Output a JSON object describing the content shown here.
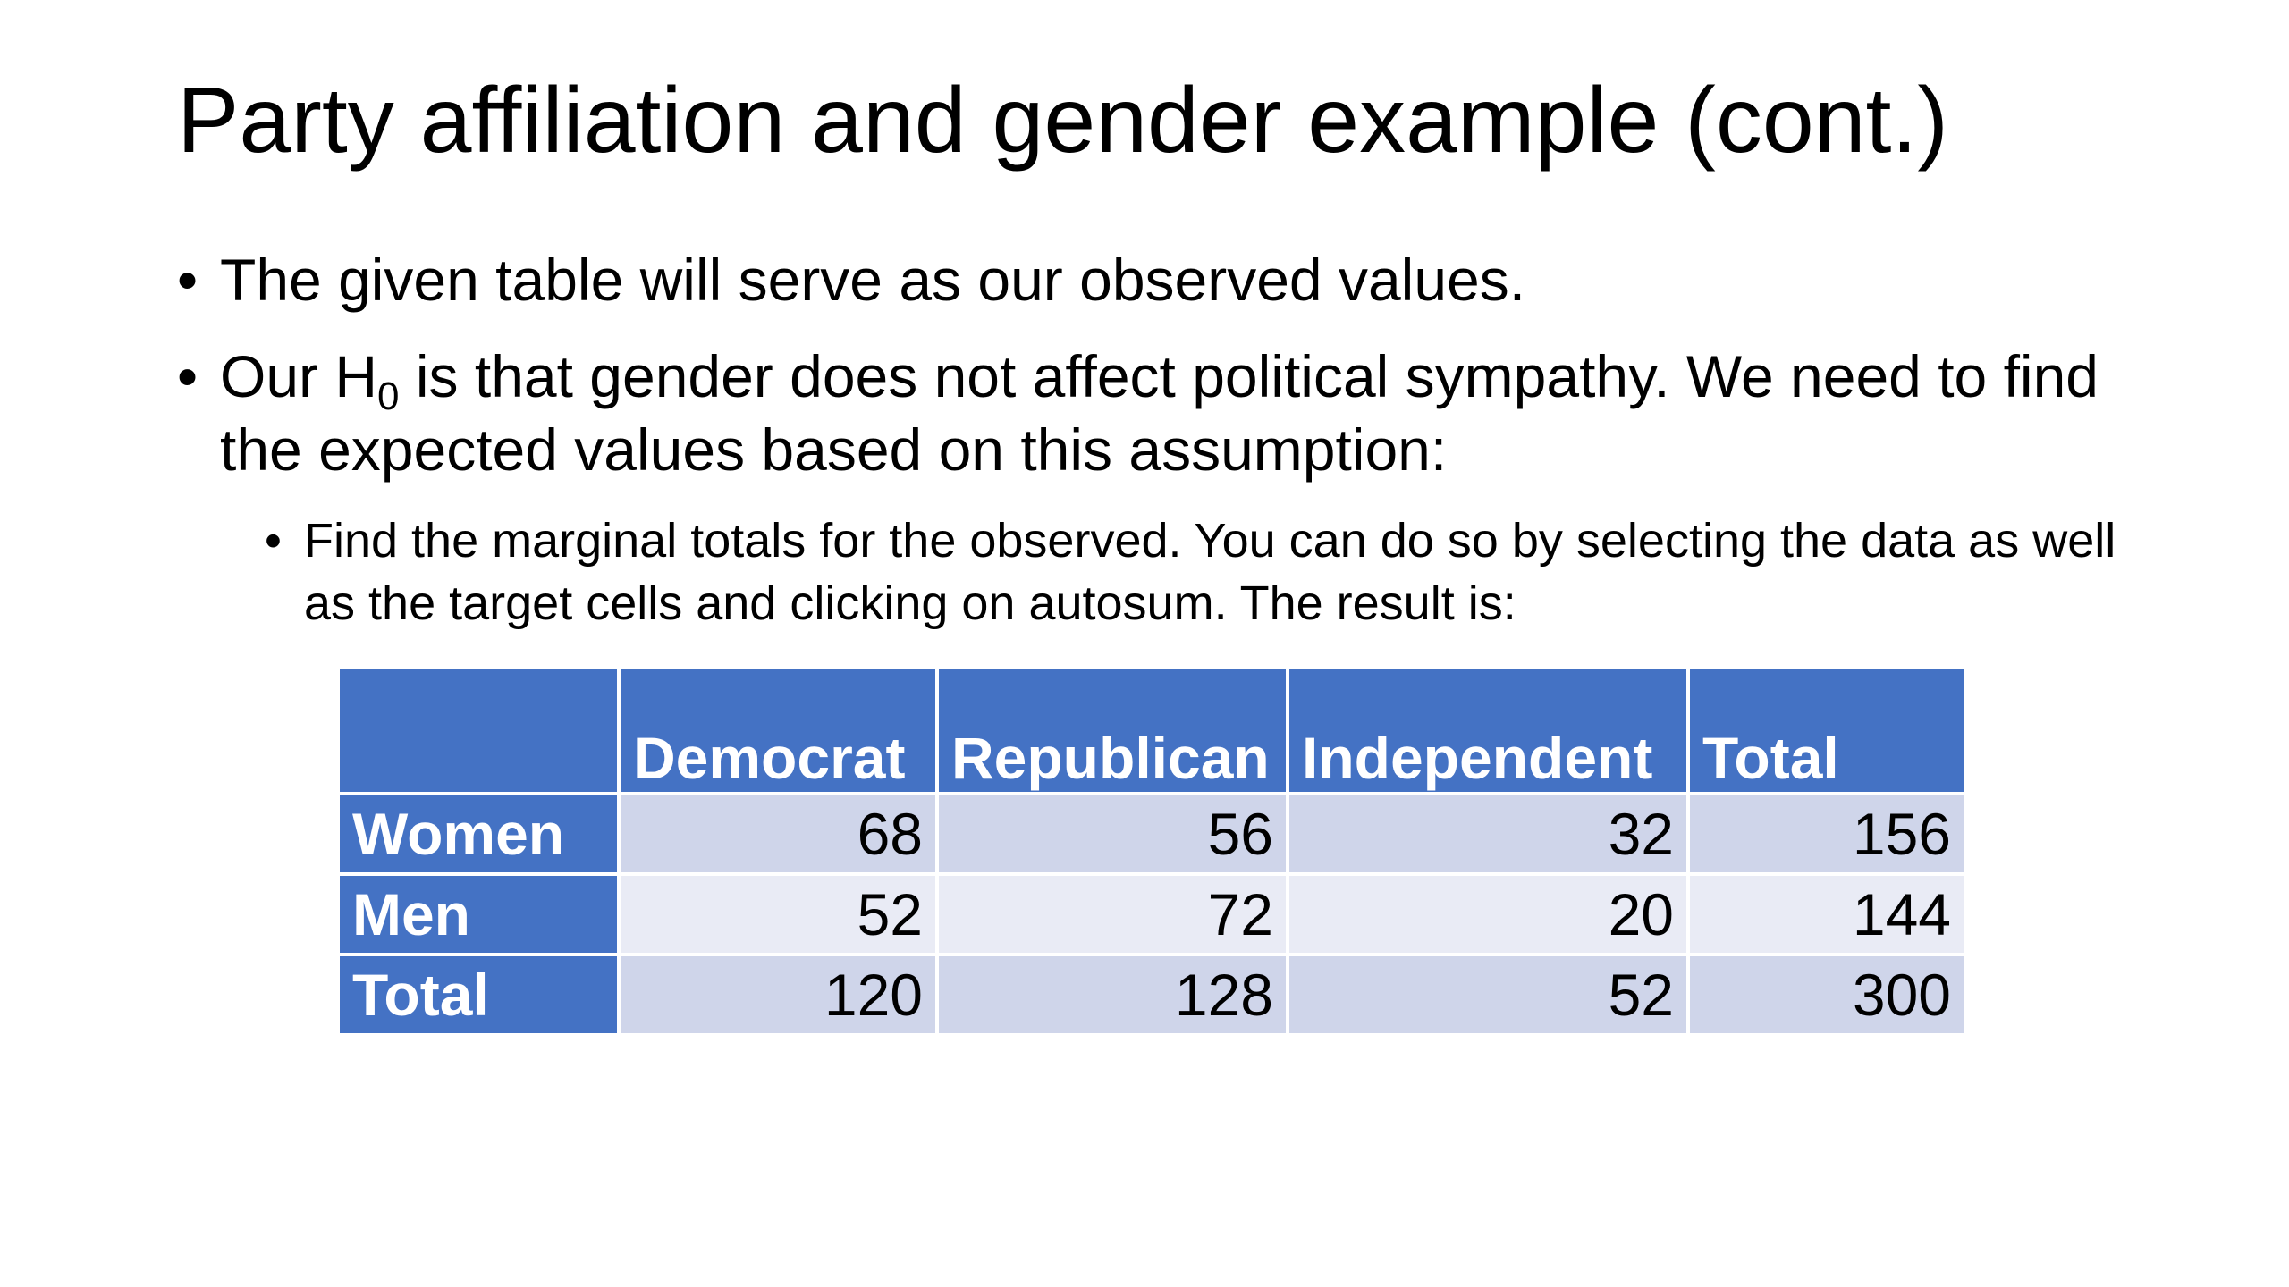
{
  "slide": {
    "title": "Party affiliation and gender example (cont.)",
    "bullets": {
      "b1": "The given table will serve as our observed values.",
      "b2_pre": "Our H",
      "b2_sub": "0",
      "b2_post": " is that gender does not affect political sympathy. We need to find the expected values based on this assumption:",
      "b3": "Find the marginal totals for the observed. You can do so by selecting the data as well as the target cells and clicking on autosum. The result is:"
    }
  },
  "table": {
    "columns": [
      "",
      "Democrat",
      "Republican",
      "Independent",
      "Total"
    ],
    "rows": [
      {
        "label": "Women",
        "values": [
          "68",
          "56",
          "32",
          "156"
        ]
      },
      {
        "label": "Men",
        "values": [
          "52",
          "72",
          "20",
          "144"
        ]
      },
      {
        "label": "Total",
        "values": [
          "120",
          "128",
          "52",
          "300"
        ]
      }
    ]
  },
  "colors": {
    "header_blue": "#4472c4",
    "band_dark": "#cfd5ea",
    "band_light": "#e9ebf5"
  }
}
